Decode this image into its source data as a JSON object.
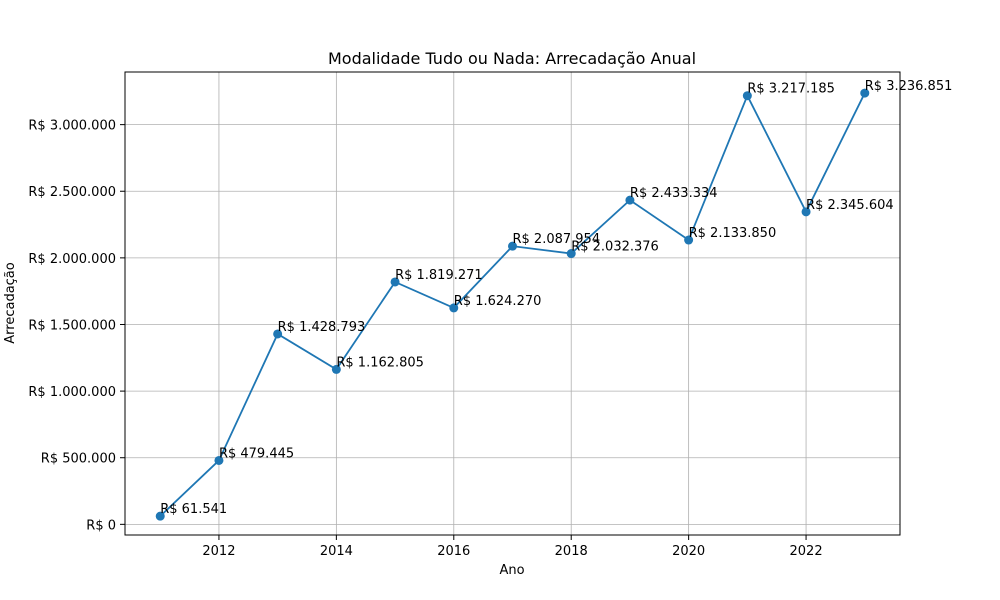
{
  "chart_data": {
    "type": "line",
    "title": "Modalidade Tudo ou Nada: Arrecadação Anual",
    "xlabel": "Ano",
    "ylabel": "Arrecadação",
    "x": [
      2011,
      2012,
      2013,
      2014,
      2015,
      2016,
      2017,
      2018,
      2019,
      2020,
      2021,
      2022,
      2023
    ],
    "series": [
      {
        "values": [
          61541,
          479445,
          1428793,
          1162805,
          1819271,
          1624270,
          2087954,
          2032376,
          2433334,
          2133850,
          3217185,
          2345604,
          3236851
        ]
      }
    ],
    "data_labels": [
      "R$ 61.541",
      "R$ 479.445",
      "R$ 1.428.793",
      "R$ 1.162.805",
      "R$ 1.819.271",
      "R$ 1.624.270",
      "R$ 2.087.954",
      "R$ 2.032.376",
      "R$ 2.433.334",
      "R$ 2.133.850",
      "R$ 3.217.185",
      "R$ 2.345.604",
      "R$ 3.236.851"
    ],
    "xlim": [
      2010.4,
      2023.6
    ],
    "ylim": [
      -80000,
      3395000
    ],
    "x_ticks": [
      2012,
      2014,
      2016,
      2018,
      2020,
      2022
    ],
    "x_tick_labels": [
      "2012",
      "2014",
      "2016",
      "2018",
      "2020",
      "2022"
    ],
    "y_ticks": [
      0,
      500000,
      1000000,
      1500000,
      2000000,
      2500000,
      3000000
    ],
    "y_tick_labels": [
      "R$ 0",
      "R$ 500.000",
      "R$ 1.000.000",
      "R$ 1.500.000",
      "R$ 2.000.000",
      "R$ 2.500.000",
      "R$ 3.000.000"
    ],
    "grid": true,
    "line_color": "#1f77b4"
  }
}
